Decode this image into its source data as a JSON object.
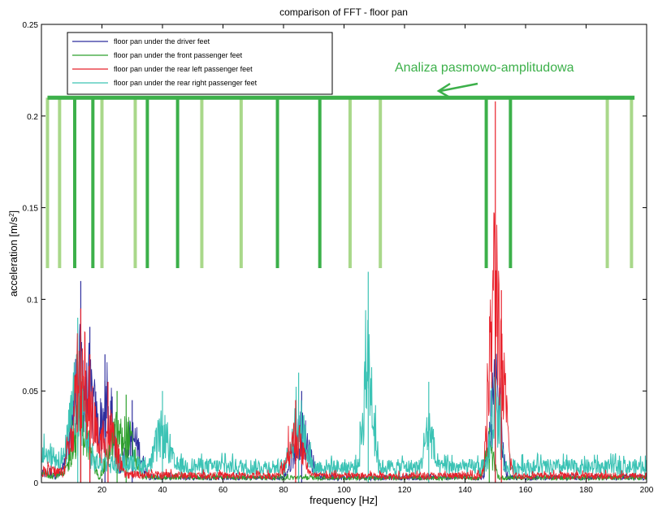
{
  "chart_data": {
    "type": "line",
    "title": "comparison of FFT - floor pan",
    "xlabel": "frequency [Hz]",
    "ylabel_main": "acceleration [m/s",
    "ylabel_sup": "2",
    "ylabel_tail": "]",
    "xlim": [
      0,
      200
    ],
    "ylim": [
      0,
      0.25
    ],
    "x_ticks": [
      20,
      40,
      60,
      80,
      100,
      120,
      140,
      160,
      180,
      200
    ],
    "x_tick_labels": [
      "20",
      "40",
      "60",
      "80",
      "100",
      "120",
      "140",
      "160",
      "180",
      "200"
    ],
    "y_ticks": [
      0,
      0.05,
      0.1,
      0.15,
      0.2,
      0.25
    ],
    "y_tick_labels": [
      "0",
      "0.05",
      "0.1",
      "0.15",
      "0.2",
      "0.25"
    ],
    "grid": false,
    "legend_position": "top-left",
    "series": [
      {
        "name": "floor pan under the driver feet",
        "color": "#2f2f9e",
        "peaks": [
          [
            13,
            0.11
          ],
          [
            16,
            0.085
          ],
          [
            21,
            0.07
          ],
          [
            30,
            0.045
          ],
          [
            86,
            0.05
          ],
          [
            150,
            0.09
          ]
        ]
      },
      {
        "name": "floor pan under the front passenger feet",
        "color": "#2ea02e",
        "peaks": [
          [
            13,
            0.06
          ],
          [
            25,
            0.05
          ],
          [
            28,
            0.048
          ],
          [
            148,
            0.03
          ]
        ]
      },
      {
        "name": "floor pan under the rear left passenger feet",
        "color": "#e8202a",
        "peaks": [
          [
            13,
            0.095
          ],
          [
            16,
            0.07
          ],
          [
            22,
            0.055
          ],
          [
            84,
            0.045
          ],
          [
            150,
            0.208
          ],
          [
            152,
            0.105
          ]
        ]
      },
      {
        "name": "floor pan under the rear right passenger feet",
        "color": "#3cc3b5",
        "peaks": [
          [
            12,
            0.09
          ],
          [
            40,
            0.05
          ],
          [
            85,
            0.06
          ],
          [
            108,
            0.115
          ],
          [
            128,
            0.055
          ],
          [
            150,
            0.075
          ]
        ]
      }
    ],
    "annotation": {
      "text": "Analiza pasmowo-amplitudowa",
      "color": "#3cb04a",
      "bar_y": 0.21,
      "band_bottom": 0.117,
      "band_edges_dark": [
        11,
        17,
        35,
        45,
        78,
        92,
        147,
        155
      ],
      "band_edges_light": [
        2,
        6,
        20,
        31,
        53,
        66,
        102,
        112,
        187,
        195
      ],
      "dark_color": "#3cb04a",
      "light_color": "#a9d88a"
    }
  }
}
